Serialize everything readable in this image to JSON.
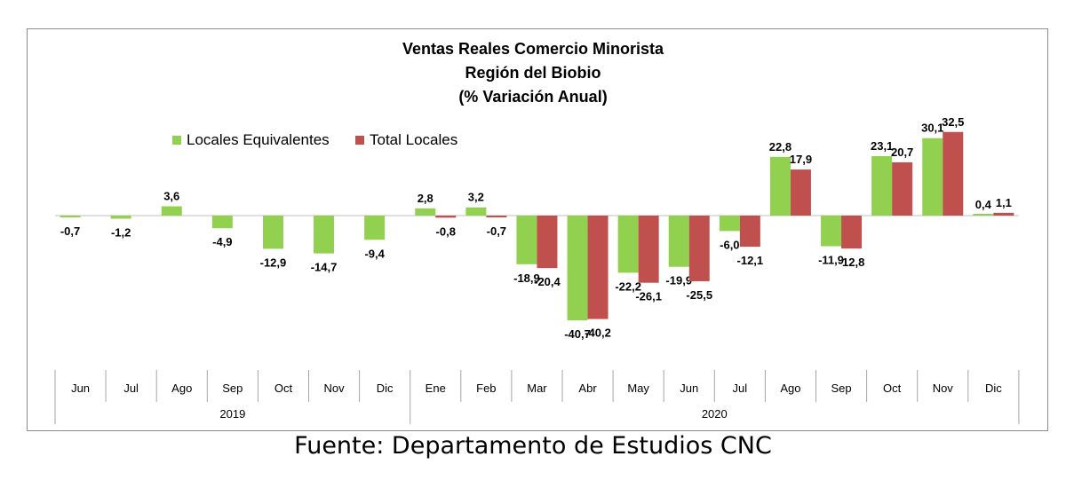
{
  "chart_data": {
    "type": "bar",
    "title_lines": [
      "Ventas Reales Comercio Minorista",
      "Región del Biobio",
      "(% Variación Anual)"
    ],
    "categories": [
      "Jun",
      "Jul",
      "Ago",
      "Sep",
      "Oct",
      "Nov",
      "Dic",
      "Ene",
      "Feb",
      "Mar",
      "Abr",
      "May",
      "Jun",
      "Jul",
      "Ago",
      "Sep",
      "Oct",
      "Nov",
      "Dic"
    ],
    "year_groups": [
      {
        "label": "2019",
        "span": 7
      },
      {
        "label": "2020",
        "span": 12
      }
    ],
    "series": [
      {
        "name": "Locales Equivalentes",
        "color": "#92d050",
        "values": [
          -0.7,
          -1.2,
          3.6,
          -4.9,
          -12.9,
          -14.7,
          -9.4,
          2.8,
          3.2,
          -18.9,
          -40.7,
          -22.2,
          -19.9,
          -6.0,
          22.8,
          -11.9,
          23.1,
          30.1,
          0.4
        ],
        "labels": [
          "-0,7",
          "-1,2",
          "3,6",
          "-4,9",
          "-12,9",
          "-14,7",
          "-9,4",
          "2,8",
          "3,2",
          "-18,9",
          "-40,7",
          "-22,2",
          "-19,9",
          "-6,0",
          "22,8",
          "-11,9",
          "23,1",
          "30,1",
          "0,4"
        ]
      },
      {
        "name": "Total Locales",
        "color": "#c0504d",
        "values": [
          null,
          null,
          null,
          null,
          null,
          null,
          null,
          -0.8,
          -0.7,
          -20.4,
          -40.2,
          -26.1,
          -25.5,
          -12.1,
          17.9,
          -12.8,
          20.7,
          32.5,
          1.1
        ],
        "labels": [
          null,
          null,
          null,
          null,
          null,
          null,
          null,
          "-0,8",
          "-0,7",
          "-20,4",
          "-40,2",
          "-26,1",
          "-25,5",
          "-12,1",
          "17,9",
          "-12,8",
          "20,7",
          "32,5",
          "1,1"
        ]
      }
    ],
    "ylim": [
      -42,
      34
    ],
    "grid": false,
    "legend_position": "top-left"
  },
  "source_note": "Fuente: Departamento de Estudios CNC"
}
